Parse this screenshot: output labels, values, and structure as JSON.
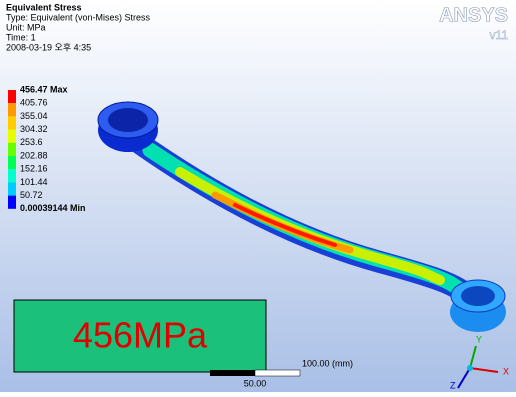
{
  "header": {
    "title": "Equivalent Stress",
    "lines": [
      "Type: Equivalent (von-Mises) Stress",
      "Unit: MPa",
      "Time: 1",
      "2008-03-19 오후 4:35"
    ]
  },
  "logo": {
    "brand": "ANSYS",
    "version": "v11"
  },
  "legend": {
    "labels": [
      "456.47 Max",
      "405.76",
      "355.04",
      "304.32",
      "253.6",
      "202.88",
      "152.16",
      "101.44",
      "50.72",
      "0.00039144 Min"
    ],
    "colors": [
      "#ff0000",
      "#ff9900",
      "#ffcc00",
      "#e6ff00",
      "#66ff00",
      "#00ff55",
      "#00ffcc",
      "#00ccff",
      "#0000ff"
    ]
  },
  "callout": "456MPa",
  "scale_bar": {
    "length_label": "100.00 (mm)",
    "half_label": "50.00"
  },
  "triad": {
    "x": "X",
    "y": "Y",
    "z": "Z"
  }
}
